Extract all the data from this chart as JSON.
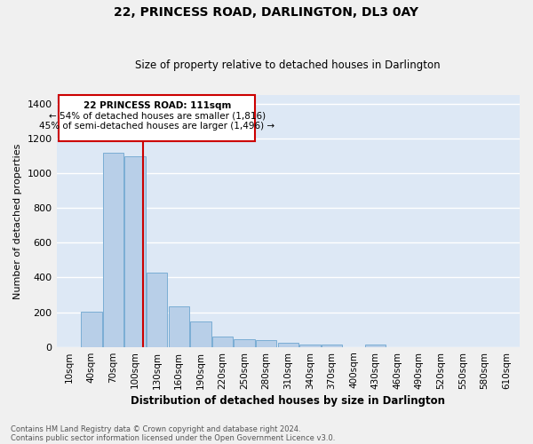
{
  "title": "22, PRINCESS ROAD, DARLINGTON, DL3 0AY",
  "subtitle": "Size of property relative to detached houses in Darlington",
  "xlabel": "Distribution of detached houses by size in Darlington",
  "ylabel": "Number of detached properties",
  "footnote1": "Contains HM Land Registry data © Crown copyright and database right 2024.",
  "footnote2": "Contains public sector information licensed under the Open Government Licence v3.0.",
  "annotation_line1": "22 PRINCESS ROAD: 111sqm",
  "annotation_line2": "← 54% of detached houses are smaller (1,816)",
  "annotation_line3": "45% of semi-detached houses are larger (1,496) →",
  "property_size_idx": 3,
  "categories": [
    "10sqm",
    "40sqm",
    "70sqm",
    "100sqm",
    "130sqm",
    "160sqm",
    "190sqm",
    "220sqm",
    "250sqm",
    "280sqm",
    "310sqm",
    "340sqm",
    "370sqm",
    "400sqm",
    "430sqm",
    "460sqm",
    "490sqm",
    "520sqm",
    "550sqm",
    "580sqm",
    "610sqm"
  ],
  "values": [
    0,
    205,
    1120,
    1100,
    430,
    235,
    148,
    62,
    45,
    38,
    22,
    14,
    14,
    0,
    12,
    0,
    0,
    0,
    0,
    0,
    0
  ],
  "bar_color": "#b8cfe8",
  "bar_edge_color": "#7aadd4",
  "bg_color": "#dde8f5",
  "grid_color": "#ffffff",
  "vline_color": "#cc0000",
  "annotation_box_color": "#cc0000",
  "ylim": [
    0,
    1450
  ],
  "yticks": [
    0,
    200,
    400,
    600,
    800,
    1000,
    1200,
    1400
  ],
  "fig_bg": "#f0f0f0"
}
